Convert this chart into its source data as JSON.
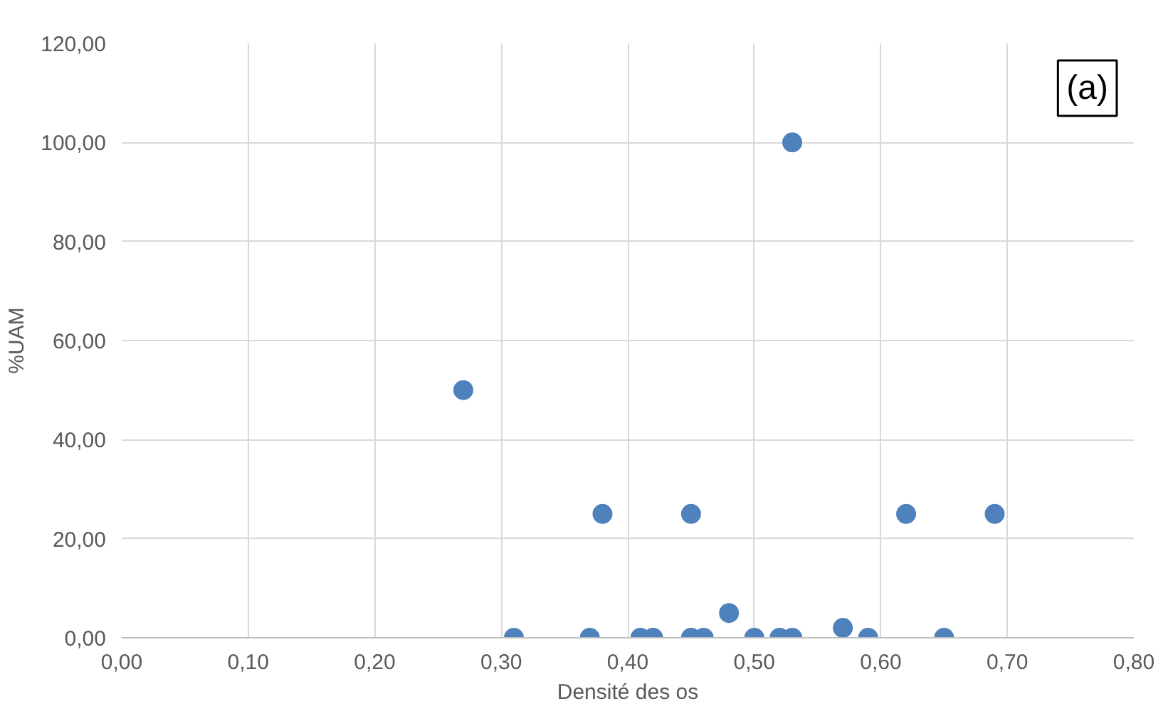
{
  "chart_data": {
    "type": "scatter",
    "xlabel": "Densité des os",
    "ylabel": "%UAM",
    "annotations": [
      "(a)"
    ],
    "x": [
      0.27,
      0.31,
      0.37,
      0.38,
      0.41,
      0.42,
      0.45,
      0.45,
      0.46,
      0.48,
      0.5,
      0.52,
      0.53,
      0.53,
      0.57,
      0.59,
      0.62,
      0.65,
      0.69
    ],
    "series": [
      {
        "color": "#4f81bd",
        "values": [
          50,
          0,
          0,
          25,
          0,
          0,
          25,
          0,
          0,
          5,
          0,
          0,
          100,
          0,
          2,
          0,
          25,
          0,
          25
        ]
      }
    ],
    "xlim": [
      0,
      0.8
    ],
    "ylim": [
      0,
      120
    ],
    "xticks": [
      {
        "value": 0,
        "label": "0,00"
      },
      {
        "value": 0.1,
        "label": "0,10"
      },
      {
        "value": 0.2,
        "label": "0,20"
      },
      {
        "value": 0.3,
        "label": "0,30"
      },
      {
        "value": 0.4,
        "label": "0,40"
      },
      {
        "value": 0.5,
        "label": "0,50"
      },
      {
        "value": 0.6,
        "label": "0,60"
      },
      {
        "value": 0.7,
        "label": "0,70"
      },
      {
        "value": 0.8,
        "label": "0,80"
      }
    ],
    "yticks": [
      {
        "value": 0,
        "label": "0,00"
      },
      {
        "value": 20,
        "label": "20,00"
      },
      {
        "value": 40,
        "label": "40,00"
      },
      {
        "value": 60,
        "label": "60,00"
      },
      {
        "value": 80,
        "label": "80,00"
      },
      {
        "value": 100,
        "label": "100,00"
      },
      {
        "value": 120,
        "label": "120,00"
      }
    ],
    "grid": true,
    "marker": "circle"
  }
}
